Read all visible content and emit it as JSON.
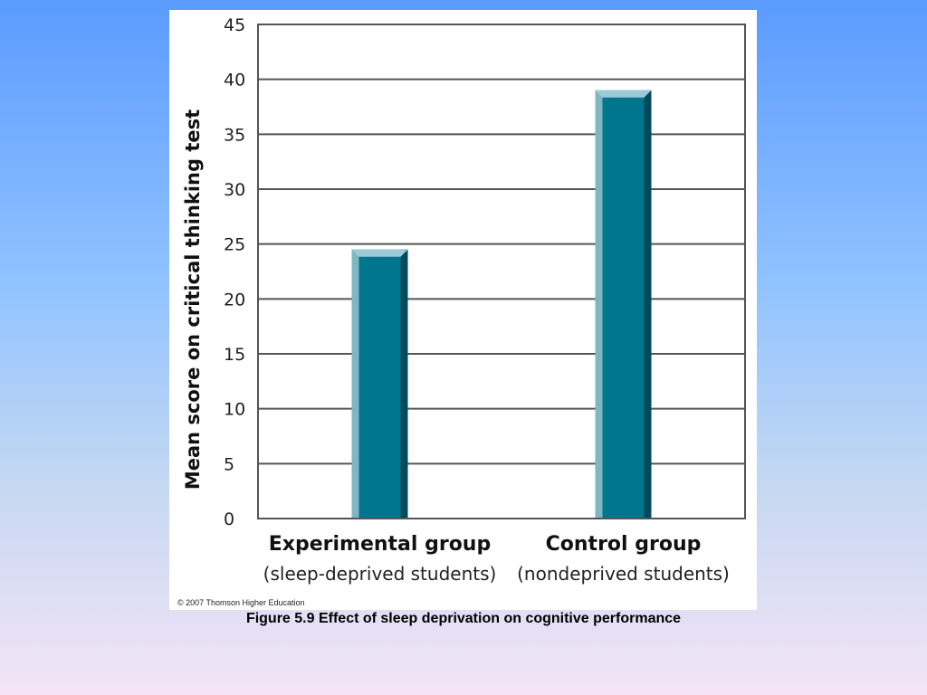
{
  "chart_data": {
    "type": "bar",
    "ylabel": "Mean score on critical thinking test",
    "ylim": [
      0,
      45
    ],
    "yticks": [
      0,
      5,
      10,
      15,
      20,
      25,
      30,
      35,
      40,
      45
    ],
    "grid": true,
    "categories": [
      {
        "name": "Experimental group",
        "sublabel": "(sleep-deprived students)"
      },
      {
        "name": "Control group",
        "sublabel": "(nondeprived students)"
      }
    ],
    "values": [
      24.5,
      39
    ]
  },
  "colors": {
    "bar_front": "#00768e",
    "bar_left": "#7fb6c4",
    "bar_right": "#004a5b",
    "bar_top": "#9ccad6",
    "grid": "#555555"
  },
  "copyright": "© 2007 Thomson Higher Education",
  "caption": "Figure 5.9  Effect of sleep deprivation on cognitive performance"
}
